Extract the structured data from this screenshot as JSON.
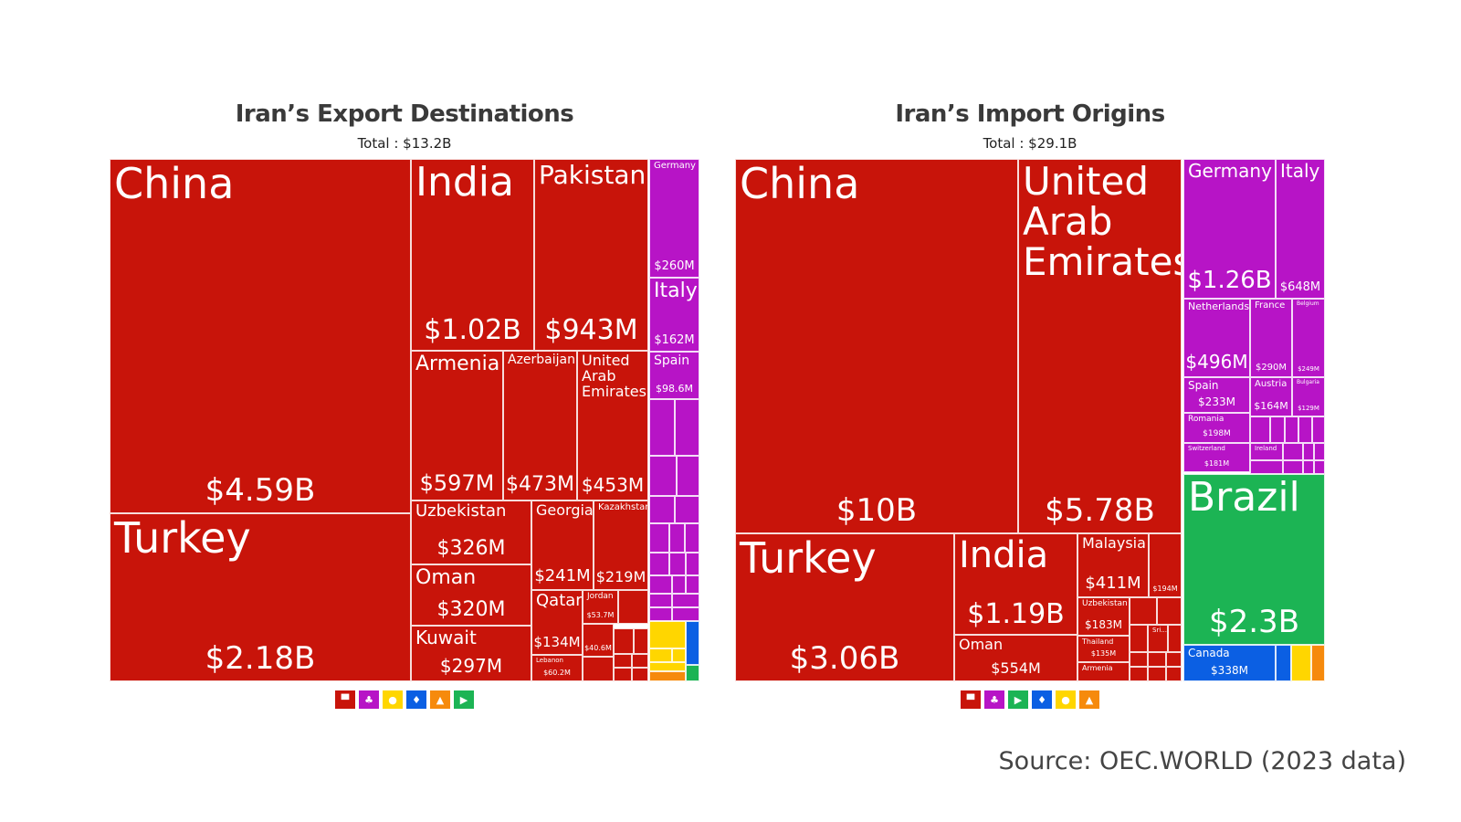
{
  "colors": {
    "asia": "#C8140A",
    "europe": "#B714C6",
    "africa": "#FFD600",
    "namerica": "#0B5FE3",
    "oceania": "#F68A0C",
    "samerica": "#1CB454"
  },
  "charts": [
    {
      "title": "Iran’s Export Destinations",
      "total": "Total : $13.2B",
      "legend": [
        "asia",
        "europe",
        "africa",
        "namerica",
        "oceania",
        "samerica"
      ],
      "tiles": [
        {
          "name": "China",
          "value": "$4.59B",
          "region": "asia"
        },
        {
          "name": "Turkey",
          "value": "$2.18B",
          "region": "asia"
        },
        {
          "name": "India",
          "value": "$1.02B",
          "region": "asia"
        },
        {
          "name": "Pakistan",
          "value": "$943M",
          "region": "asia"
        },
        {
          "name": "Armenia",
          "value": "$597M",
          "region": "asia"
        },
        {
          "name": "Azerbaijan",
          "value": "$473M",
          "region": "asia"
        },
        {
          "name": "United Arab Emirates",
          "value": "$453M",
          "region": "asia"
        },
        {
          "name": "Uzbekistan",
          "value": "$326M",
          "region": "asia"
        },
        {
          "name": "Oman",
          "value": "$320M",
          "region": "asia"
        },
        {
          "name": "Kuwait",
          "value": "$297M",
          "region": "asia"
        },
        {
          "name": "Georgia",
          "value": "$241M",
          "region": "asia"
        },
        {
          "name": "Kazakhstan",
          "value": "$219M",
          "region": "asia"
        },
        {
          "name": "Qatar",
          "value": "$134M",
          "region": "asia"
        },
        {
          "name": "Lebanon",
          "value": "$60.2M",
          "region": "asia"
        },
        {
          "name": "Jordan",
          "value": "$53.7M",
          "region": "asia"
        },
        {
          "name": "",
          "value": "$40.6M",
          "region": "asia"
        },
        {
          "name": "Germany",
          "value": "$260M",
          "region": "europe"
        },
        {
          "name": "Italy",
          "value": "$162M",
          "region": "europe"
        },
        {
          "name": "Spain",
          "value": "$98.6M",
          "region": "europe"
        }
      ]
    },
    {
      "title": "Iran’s Import Origins",
      "total": "Total : $29.1B",
      "legend": [
        "asia",
        "europe",
        "samerica",
        "namerica",
        "africa",
        "oceania"
      ],
      "tiles": [
        {
          "name": "China",
          "value": "$10B",
          "region": "asia"
        },
        {
          "name": "United Arab Emirates",
          "value": "$5.78B",
          "region": "asia"
        },
        {
          "name": "Turkey",
          "value": "$3.06B",
          "region": "asia"
        },
        {
          "name": "India",
          "value": "$1.19B",
          "region": "asia"
        },
        {
          "name": "Oman",
          "value": "$554M",
          "region": "asia"
        },
        {
          "name": "Malaysia",
          "value": "$411M",
          "region": "asia"
        },
        {
          "name": "",
          "value": "$194M",
          "region": "asia"
        },
        {
          "name": "Uzbekistan",
          "value": "$183M",
          "region": "asia"
        },
        {
          "name": "Thailand",
          "value": "$135M",
          "region": "asia"
        },
        {
          "name": "Armenia",
          "value": "",
          "region": "asia"
        },
        {
          "name": "Sri...",
          "value": "",
          "region": "asia"
        },
        {
          "name": "Germany",
          "value": "$1.26B",
          "region": "europe"
        },
        {
          "name": "Italy",
          "value": "$648M",
          "region": "europe"
        },
        {
          "name": "Netherlands",
          "value": "$496M",
          "region": "europe"
        },
        {
          "name": "France",
          "value": "$290M",
          "region": "europe"
        },
        {
          "name": "Belgium",
          "value": "$249M",
          "region": "europe"
        },
        {
          "name": "Spain",
          "value": "$233M",
          "region": "europe"
        },
        {
          "name": "Austria",
          "value": "$164M",
          "region": "europe"
        },
        {
          "name": "Bulgaria",
          "value": "$129M",
          "region": "europe"
        },
        {
          "name": "Romania",
          "value": "$198M",
          "region": "europe"
        },
        {
          "name": "Switzerland",
          "value": "$181M",
          "region": "europe"
        },
        {
          "name": "Ireland",
          "value": "",
          "region": "europe"
        },
        {
          "name": "Brazil",
          "value": "$2.3B",
          "region": "samerica"
        },
        {
          "name": "Canada",
          "value": "$338M",
          "region": "namerica"
        }
      ]
    }
  ],
  "source": "Source: OEC.WORLD (2023 data)"
}
